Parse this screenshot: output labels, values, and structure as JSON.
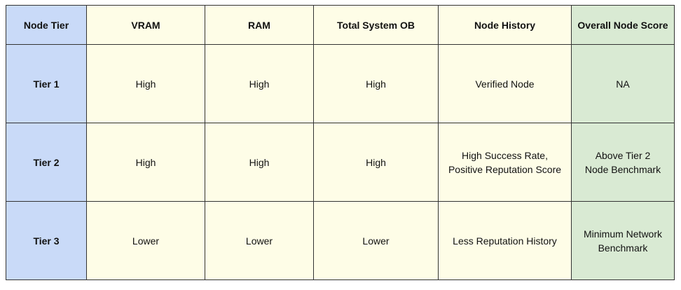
{
  "table": {
    "headers": {
      "tier": "Node Tier",
      "vram": "VRAM",
      "ram": "RAM",
      "total": "Total System OB",
      "history": "Node History",
      "score": "Overall Node Score"
    },
    "rows": [
      {
        "tier": "Tier 1",
        "vram": "High",
        "ram": "High",
        "total": "High",
        "history": "Verified Node",
        "score": "NA"
      },
      {
        "tier": "Tier 2",
        "vram": "High",
        "ram": "High",
        "total": "High",
        "history": "High Success Rate,\nPositive Reputation Score",
        "score": "Above Tier 2\nNode Benchmark"
      },
      {
        "tier": "Tier 3",
        "vram": "Lower",
        "ram": "Lower",
        "total": "Lower",
        "history": "Less Reputation History",
        "score": "Minimum Network\nBenchmark"
      }
    ],
    "colors": {
      "tier_column": "#c9daf8",
      "middle_columns": "#fefde7",
      "score_column": "#d9ead3",
      "border": "#333333"
    }
  }
}
